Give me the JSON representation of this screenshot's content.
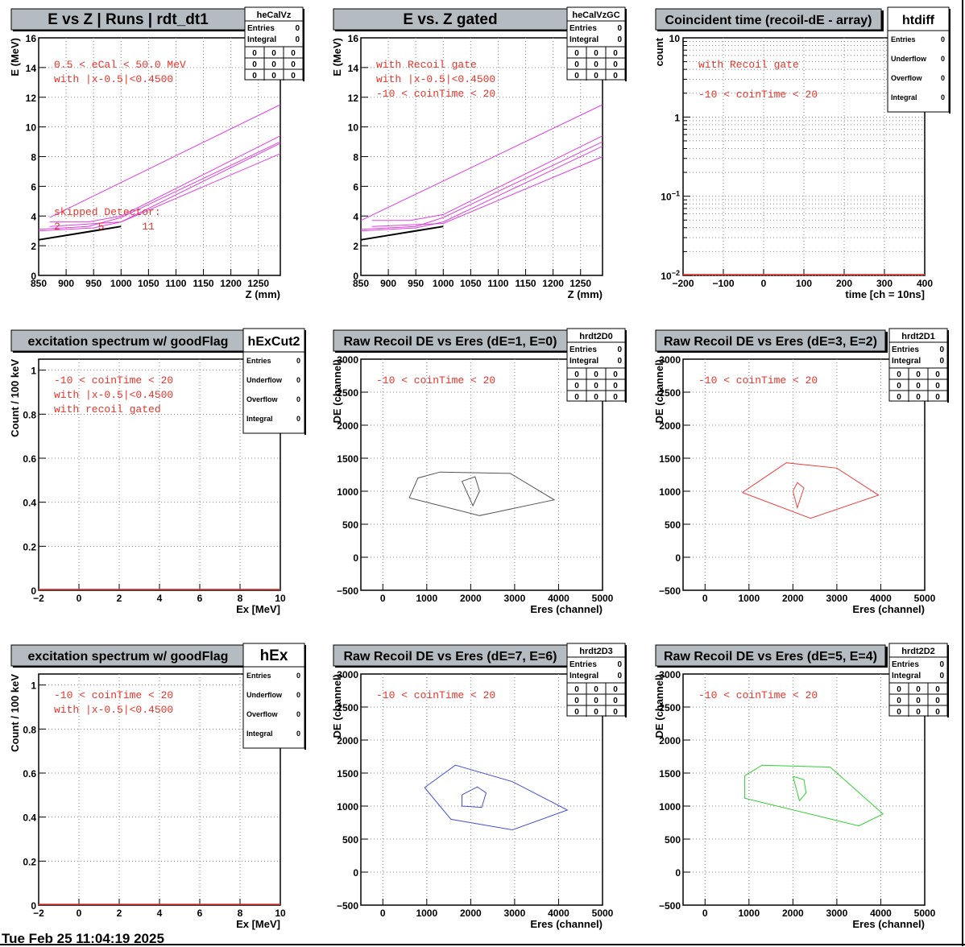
{
  "footer_timestamp": "Tue Feb 25 11:04:19 2025",
  "colors": {
    "title_bg": "#b4bcc2",
    "annotation_red": "#e8342a",
    "magenta": "#e040e0",
    "contour_black": "#555555",
    "contour_red": "#f04040",
    "contour_blue": "#4050e0",
    "contour_green": "#30d030"
  },
  "chart_data": [
    {
      "id": "heCalVz",
      "type": "line",
      "title": "E vs Z | Runs | rdt_dt1",
      "xlabel": "Z (mm)",
      "ylabel": "E (MeV)",
      "xlim": [
        850,
        1290
      ],
      "ylim": [
        0,
        16
      ],
      "xticks": [
        "850",
        "900",
        "950",
        "1000",
        "1050",
        "1100",
        "1150",
        "1200",
        "1250"
      ],
      "yticks": [
        "0",
        "2",
        "4",
        "6",
        "8",
        "10",
        "12",
        "14",
        "16"
      ],
      "stats": {
        "name": "heCalVz",
        "rows": [
          [
            "Entries",
            "0"
          ],
          [
            "Integral",
            "0"
          ]
        ],
        "grid": [
          [
            "0",
            "0",
            "0"
          ],
          [
            "0",
            "0",
            "0"
          ],
          [
            "0",
            "0",
            "0"
          ]
        ]
      },
      "annotations": [
        "0.5 < eCal < 50.0 MeV",
        "with |x-0.5|<0.4500"
      ],
      "annotations2": [
        "skipped Detector:",
        "2      5      11"
      ],
      "series": [
        {
          "color": "magenta",
          "x": [
            870,
            1290
          ],
          "y": [
            3.9,
            11.5
          ]
        },
        {
          "color": "magenta",
          "x": [
            870,
            940,
            1000,
            1290
          ],
          "y": [
            3.6,
            3.6,
            4.0,
            9.4
          ]
        },
        {
          "color": "magenta",
          "x": [
            850,
            940,
            1000,
            1290
          ],
          "y": [
            3.1,
            3.3,
            3.9,
            9.0
          ]
        },
        {
          "color": "magenta",
          "x": [
            850,
            950,
            1000,
            1290
          ],
          "y": [
            3.0,
            3.2,
            3.6,
            8.9
          ]
        },
        {
          "color": "magenta",
          "x": [
            870,
            1000,
            1290
          ],
          "y": [
            3.3,
            3.6,
            8.2
          ]
        },
        {
          "color": "black",
          "x": [
            850,
            1000
          ],
          "y": [
            2.4,
            3.3
          ]
        }
      ]
    },
    {
      "id": "heCalVzGC",
      "type": "line",
      "title": "E vs. Z gated",
      "xlabel": "Z (mm)",
      "ylabel": "E (MeV)",
      "xlim": [
        850,
        1290
      ],
      "ylim": [
        0,
        16
      ],
      "xticks": [
        "850",
        "900",
        "950",
        "1000",
        "1050",
        "1100",
        "1150",
        "1200",
        "1250"
      ],
      "yticks": [
        "0",
        "2",
        "4",
        "6",
        "8",
        "10",
        "12",
        "14",
        "16"
      ],
      "stats": {
        "name": "heCalVzGC",
        "rows": [
          [
            "Entries",
            "0"
          ],
          [
            "Integral",
            "0"
          ]
        ],
        "grid": [
          [
            "0",
            "0",
            "0"
          ],
          [
            "0",
            "0",
            "0"
          ],
          [
            "0",
            "0",
            "0"
          ]
        ]
      },
      "annotations": [
        "with Recoil gate",
        "with |x-0.5|<0.4500",
        "-10 < coinTime < 20"
      ],
      "series": [
        {
          "color": "magenta",
          "x": [
            850,
            1290
          ],
          "y": [
            3.7,
            11.5
          ]
        },
        {
          "color": "magenta",
          "x": [
            870,
            940,
            1000,
            1290
          ],
          "y": [
            3.7,
            3.7,
            4.1,
            9.4
          ]
        },
        {
          "color": "magenta",
          "x": [
            850,
            950,
            1000,
            1290
          ],
          "y": [
            3.1,
            3.3,
            3.9,
            9.0
          ]
        },
        {
          "color": "magenta",
          "x": [
            850,
            950,
            1000,
            1290
          ],
          "y": [
            3.0,
            3.2,
            3.6,
            8.7
          ]
        },
        {
          "color": "magenta",
          "x": [
            870,
            1000,
            1290
          ],
          "y": [
            3.3,
            3.5,
            8.0
          ]
        },
        {
          "color": "black",
          "x": [
            850,
            1000
          ],
          "y": [
            2.4,
            3.3
          ]
        }
      ]
    },
    {
      "id": "htdiff",
      "type": "line",
      "title": "Coincident time (recoil-dE - array)",
      "xlabel": "time [ch = 10ns]",
      "ylabel": "count",
      "xlim": [
        -200,
        400
      ],
      "logy": true,
      "ylim": [
        0.01,
        10
      ],
      "xticks": [
        "−200",
        "−100",
        "0",
        "100",
        "200",
        "300",
        "400"
      ],
      "stats": {
        "name": "htdiff",
        "rows": [
          [
            "Entries",
            "0"
          ],
          [
            "Underflow",
            "0"
          ],
          [
            "Overflow",
            "0"
          ],
          [
            "Integral",
            "0"
          ]
        ]
      },
      "annotations": [
        "with Recoil gate",
        "-10 < coinTime < 20"
      ],
      "series": []
    },
    {
      "id": "hExCut2",
      "type": "line",
      "title": "excitation spectrum w/ goodFlag",
      "xlabel": "Ex [MeV]",
      "ylabel": "Count / 100 keV",
      "xlim": [
        -2,
        10
      ],
      "ylim": [
        0,
        1.05
      ],
      "xticks": [
        "−2",
        "0",
        "2",
        "4",
        "6",
        "8",
        "10"
      ],
      "yticks": [
        "0",
        "0.2",
        "0.4",
        "0.6",
        "0.8",
        "1"
      ],
      "stats": {
        "name": "hExCut2",
        "rows": [
          [
            "Entries",
            "0"
          ],
          [
            "Underflow",
            "0"
          ],
          [
            "Overflow",
            "0"
          ],
          [
            "Integral",
            "0"
          ]
        ]
      },
      "annotations": [
        "-10 < coinTime < 20",
        "with |x-0.5|<0.4500",
        "with recoil gated"
      ],
      "series": []
    },
    {
      "id": "hrdt2D0",
      "type": "line",
      "title": "Raw Recoil DE vs Eres (dE=1, E=0)",
      "xlabel": "Eres (channel)",
      "ylabel": "DE (channel)",
      "xlim": [
        -500,
        5000
      ],
      "ylim": [
        -500,
        3000
      ],
      "xticks": [
        "0",
        "1000",
        "2000",
        "3000",
        "4000",
        "5000"
      ],
      "yticks": [
        "−500",
        "0",
        "500",
        "1000",
        "1500",
        "2000",
        "2500",
        "3000"
      ],
      "stats": {
        "name": "hrdt2D0",
        "rows": [
          [
            "Entries",
            "0"
          ],
          [
            "Integral",
            "0"
          ]
        ],
        "grid": [
          [
            "0",
            "0",
            "0"
          ],
          [
            "0",
            "0",
            "0"
          ],
          [
            "0",
            "0",
            "0"
          ]
        ]
      },
      "annotations": [
        "-10 < coinTime < 20"
      ],
      "contour_color": "contour_black",
      "series": [
        {
          "x": [
            600,
            800,
            1300,
            2900,
            3900,
            2200,
            600
          ],
          "y": [
            900,
            1200,
            1290,
            1270,
            870,
            630,
            900
          ]
        },
        {
          "x": [
            1800,
            2100,
            2200,
            2050,
            1800
          ],
          "y": [
            1150,
            1220,
            1000,
            780,
            1150
          ]
        }
      ]
    },
    {
      "id": "hrdt2D1",
      "type": "line",
      "title": "Raw Recoil DE vs Eres (dE=3, E=2)",
      "xlabel": "Eres (channel)",
      "ylabel": "DE (channel)",
      "xlim": [
        -500,
        5000
      ],
      "ylim": [
        -500,
        3000
      ],
      "xticks": [
        "0",
        "1000",
        "2000",
        "3000",
        "4000",
        "5000"
      ],
      "yticks": [
        "−500",
        "0",
        "500",
        "1000",
        "1500",
        "2000",
        "2500",
        "3000"
      ],
      "stats": {
        "name": "hrdt2D1",
        "rows": [
          [
            "Entries",
            "0"
          ],
          [
            "Integral",
            "0"
          ]
        ],
        "grid": [
          [
            "0",
            "0",
            "0"
          ],
          [
            "0",
            "0",
            "0"
          ],
          [
            "0",
            "0",
            "0"
          ]
        ]
      },
      "annotations": [
        "-10 < coinTime < 20"
      ],
      "contour_color": "contour_red",
      "series": [
        {
          "x": [
            850,
            1850,
            3000,
            3950,
            2400,
            850
          ],
          "y": [
            980,
            1430,
            1350,
            940,
            590,
            980
          ]
        },
        {
          "x": [
            2000,
            2100,
            2250,
            2100,
            2000
          ],
          "y": [
            1000,
            1130,
            1050,
            750,
            1000
          ]
        }
      ]
    },
    {
      "id": "hEx",
      "type": "line",
      "title": "excitation spectrum w/ goodFlag",
      "xlabel": "Ex [MeV]",
      "ylabel": "Count / 100 keV",
      "xlim": [
        -2,
        10
      ],
      "ylim": [
        0,
        1.05
      ],
      "xticks": [
        "−2",
        "0",
        "2",
        "4",
        "6",
        "8",
        "10"
      ],
      "yticks": [
        "0",
        "0.2",
        "0.4",
        "0.6",
        "0.8",
        "1"
      ],
      "stats": {
        "name": "hEx",
        "rows": [
          [
            "Entries",
            "0"
          ],
          [
            "Underflow",
            "0"
          ],
          [
            "Overflow",
            "0"
          ],
          [
            "Integral",
            "0"
          ]
        ]
      },
      "annotations": [
        "-10 < coinTime < 20",
        "with |x-0.5|<0.4500"
      ],
      "series": []
    },
    {
      "id": "hrdt2D3",
      "type": "line",
      "title": "Raw Recoil DE vs Eres (dE=7, E=6)",
      "xlabel": "Eres (channel)",
      "ylabel": "DE (channel)",
      "xlim": [
        -500,
        5000
      ],
      "ylim": [
        -500,
        3000
      ],
      "xticks": [
        "0",
        "1000",
        "2000",
        "3000",
        "4000",
        "5000"
      ],
      "yticks": [
        "−500",
        "0",
        "500",
        "1000",
        "1500",
        "2000",
        "2500",
        "3000"
      ],
      "stats": {
        "name": "hrdt2D3",
        "rows": [
          [
            "Entries",
            "0"
          ],
          [
            "Integral",
            "0"
          ]
        ],
        "grid": [
          [
            "0",
            "0",
            "0"
          ],
          [
            "0",
            "0",
            "0"
          ],
          [
            "0",
            "0",
            "0"
          ]
        ]
      },
      "annotations": [
        "-10 < coinTime < 20"
      ],
      "contour_color": "contour_blue",
      "series": [
        {
          "x": [
            950,
            1650,
            2950,
            4200,
            2950,
            1550,
            950
          ],
          "y": [
            1280,
            1620,
            1370,
            940,
            640,
            800,
            1280
          ]
        },
        {
          "x": [
            1800,
            2150,
            2350,
            2250,
            1800,
            1800
          ],
          "y": [
            1170,
            1290,
            1200,
            980,
            1000,
            1170
          ]
        }
      ]
    },
    {
      "id": "hrdt2D2",
      "type": "line",
      "title": "Raw Recoil DE vs Eres (dE=5, E=4)",
      "xlabel": "Eres (channel)",
      "ylabel": "DE (channel)",
      "xlim": [
        -500,
        5000
      ],
      "ylim": [
        -500,
        3000
      ],
      "xticks": [
        "0",
        "1000",
        "2000",
        "3000",
        "4000",
        "5000"
      ],
      "yticks": [
        "−500",
        "0",
        "500",
        "1000",
        "1500",
        "2000",
        "2500",
        "3000"
      ],
      "stats": {
        "name": "hrdt2D2",
        "rows": [
          [
            "Entries",
            "0"
          ],
          [
            "Integral",
            "0"
          ]
        ],
        "grid": [
          [
            "0",
            "0",
            "0"
          ],
          [
            "0",
            "0",
            "0"
          ],
          [
            "0",
            "0",
            "0"
          ]
        ]
      },
      "annotations": [
        "-10 < coinTime < 20"
      ],
      "contour_color": "contour_green",
      "series": [
        {
          "x": [
            900,
            1300,
            2850,
            4050,
            3500,
            900,
            900
          ],
          "y": [
            1460,
            1620,
            1590,
            880,
            700,
            1120,
            1460
          ]
        },
        {
          "x": [
            2000,
            2250,
            2300,
            2150,
            2000
          ],
          "y": [
            1450,
            1400,
            1200,
            1080,
            1450
          ]
        }
      ]
    }
  ]
}
